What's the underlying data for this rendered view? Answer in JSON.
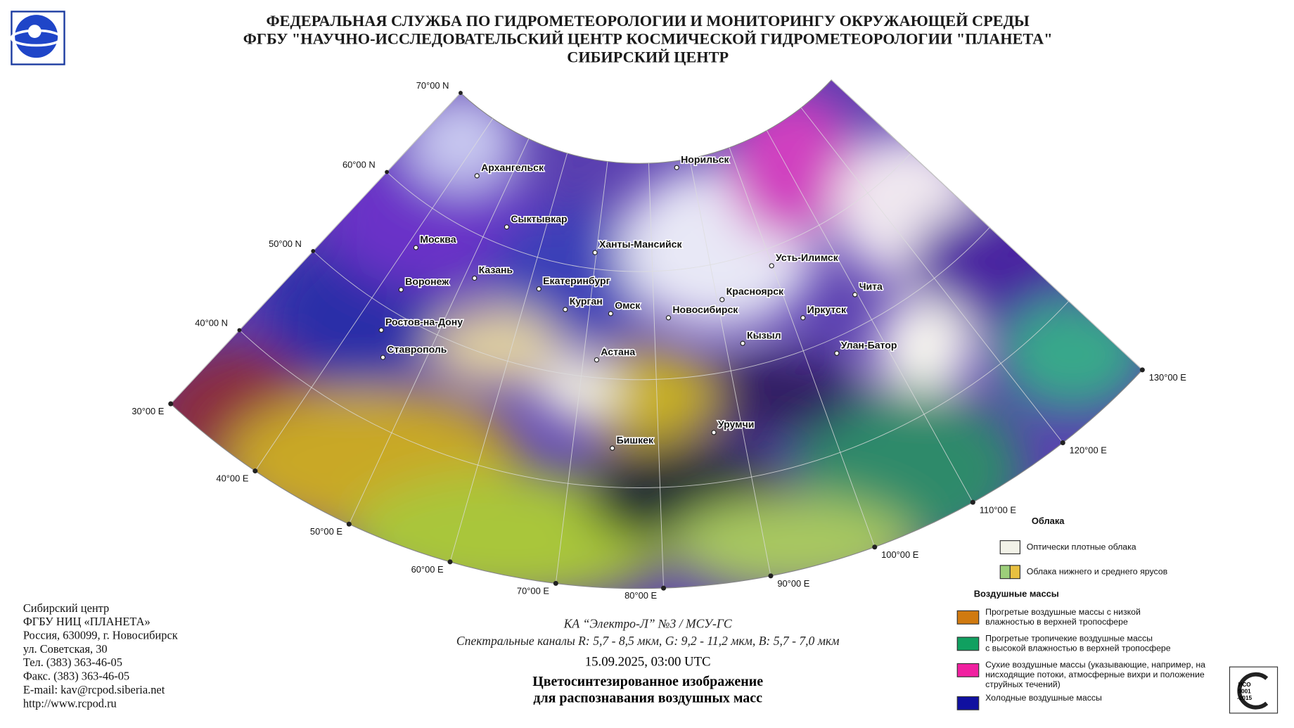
{
  "header": {
    "lines": [
      "ФЕДЕРАЛЬНАЯ СЛУЖБА ПО ГИДРОМЕТЕОРОЛОГИИ И МОНИТОРИНГУ ОКРУЖАЮЩЕЙ СРЕДЫ",
      "ФГБУ \"НАУЧНО-ИССЛЕДОВАТЕЛЬСКИЙ ЦЕНТР КОСМИЧЕСКОЙ ГИДРОМЕТЕОРОЛОГИИ \"ПЛАНЕТА\"",
      "СИБИРСКИЙ ЦЕНТР"
    ]
  },
  "map": {
    "latitudes": [
      "70°00 N",
      "60°00 N",
      "50°00 N",
      "40°00 N"
    ],
    "longitudes": [
      "30°00 E",
      "40°00 E",
      "50°00 E",
      "60°00 E",
      "70°00 E",
      "80°00 E",
      "90°00 E",
      "100°00 E",
      "110°00 E",
      "120°00 E",
      "130°00 E"
    ],
    "cities": [
      "Архангельск",
      "Норильск",
      "Сыктывкар",
      "Москва",
      "Ханты-Мансийск",
      "Усть-Илимск",
      "Казань",
      "Воронеж",
      "Екатеринбург",
      "Красноярск",
      "Чита",
      "Курган",
      "Омск",
      "Новосибирск",
      "Иркутск",
      "Ростов-на-Дону",
      "Кызыл",
      "Улан-Батор",
      "Ставрополь",
      "Астана",
      "Урумчи",
      "Бишкек"
    ]
  },
  "caption": {
    "satellite": "КА “Электро-Л” №3 / МСУ-ГС",
    "channels": "Спектральные каналы R: 5,7 - 8,5 мкм, G: 9,2 - 11,2 мкм, B: 5,7 - 7,0 мкм",
    "datetime": "15.09.2025, 03:00 UTC",
    "title_lines": [
      "Цветосинтезированное изображение",
      "для распознавания воздушных масс"
    ]
  },
  "address": {
    "lines": [
      "Сибирский центр",
      "ФГБУ НИЦ «ПЛАНЕТА»",
      "Россия, 630099, г. Новосибирск",
      "ул. Советская, 30",
      "Тел. (383) 363-46-05",
      "Факс. (383) 363-46-05",
      "E-mail: kav@rcpod.siberia.net",
      "http://www.rcpod.ru"
    ]
  },
  "legend": {
    "clouds": {
      "title": "Облака",
      "items": [
        [
          "Оптически плотные облака"
        ],
        [
          "Облака нижнего и среднего ярусов"
        ]
      ]
    },
    "air_masses": {
      "title": "Воздушные массы",
      "items": [
        [
          "Прогретые воздушные массы с низкой",
          "влажностью в верхней тропосфере"
        ],
        [
          "Прогретые тропичекие воздушные массы",
          "с высокой влажностью в верхней тропосфере"
        ],
        [
          "Сухие воздушные массы (указывающие, например, на",
          "нисходящие потоки, атмосферные вихри и положение",
          "струйных течений)"
        ],
        [
          "Холодные воздушные массы"
        ]
      ]
    }
  },
  "iso": {
    "lines": [
      "ИСО",
      "9001",
      "-2015"
    ]
  }
}
